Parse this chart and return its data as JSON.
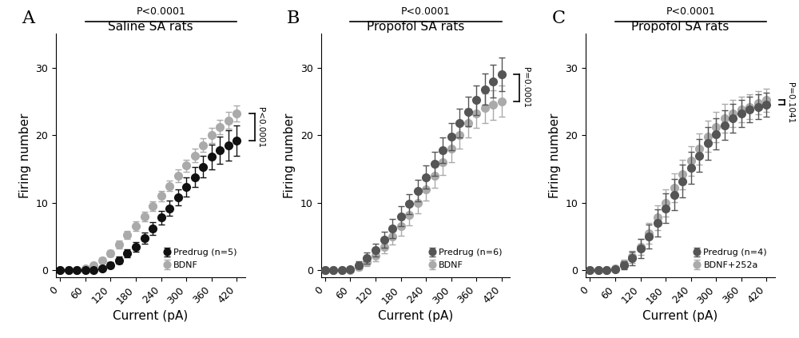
{
  "current": [
    0,
    20,
    40,
    60,
    80,
    100,
    120,
    140,
    160,
    180,
    200,
    220,
    240,
    260,
    280,
    300,
    320,
    340,
    360,
    380,
    400,
    420
  ],
  "panelA": {
    "title": "Saline SA rats",
    "label": "A",
    "predrug_label": "Predrug (n=5)",
    "drug_label": "BDNF",
    "predrug_color": "#111111",
    "drug_color": "#aaaaaa",
    "pval_top": "P<0.0001",
    "pval_right": "P<0.0001",
    "predrug_y": [
      0,
      0,
      0,
      0,
      0.1,
      0.3,
      0.8,
      1.5,
      2.5,
      3.5,
      4.8,
      6.2,
      7.8,
      9.2,
      10.8,
      12.3,
      13.8,
      15.3,
      16.8,
      17.8,
      18.5,
      19.2
    ],
    "predrug_err": [
      0,
      0,
      0,
      0.1,
      0.2,
      0.3,
      0.4,
      0.5,
      0.6,
      0.7,
      0.8,
      0.9,
      1.0,
      1.1,
      1.2,
      1.4,
      1.5,
      1.6,
      1.8,
      2.0,
      2.2,
      2.3
    ],
    "drug_y": [
      0,
      0,
      0.1,
      0.3,
      0.8,
      1.5,
      2.5,
      3.8,
      5.2,
      6.5,
      8.0,
      9.5,
      11.0,
      12.5,
      14.0,
      15.5,
      17.0,
      18.5,
      20.0,
      21.2,
      22.2,
      23.2
    ],
    "drug_err": [
      0,
      0,
      0.1,
      0.2,
      0.3,
      0.4,
      0.5,
      0.6,
      0.6,
      0.7,
      0.7,
      0.7,
      0.8,
      0.8,
      0.9,
      0.9,
      1.0,
      1.0,
      1.1,
      1.1,
      1.2,
      1.2
    ]
  },
  "panelB": {
    "title": "Propofol SA rats",
    "label": "B",
    "predrug_label": "Predrug (n=6)",
    "drug_label": "BDNF",
    "predrug_color": "#555555",
    "drug_color": "#aaaaaa",
    "pval_top": "P<0.0001",
    "pval_right": "P=0.0001",
    "predrug_y": [
      0,
      0,
      0,
      0.2,
      0.8,
      1.8,
      3.0,
      4.5,
      6.2,
      8.0,
      9.8,
      11.8,
      13.8,
      15.8,
      17.8,
      19.8,
      21.8,
      23.5,
      25.2,
      26.8,
      28.0,
      29.0
    ],
    "predrug_err": [
      0,
      0,
      0.1,
      0.3,
      0.5,
      0.8,
      1.0,
      1.2,
      1.4,
      1.5,
      1.5,
      1.6,
      1.7,
      1.8,
      1.9,
      2.0,
      2.1,
      2.2,
      2.2,
      2.3,
      2.4,
      2.5
    ],
    "drug_y": [
      0,
      0,
      0,
      0.1,
      0.5,
      1.2,
      2.2,
      3.5,
      5.0,
      6.5,
      8.2,
      10.0,
      12.0,
      14.0,
      16.0,
      18.0,
      20.0,
      21.8,
      23.2,
      24.0,
      24.5,
      25.0
    ],
    "drug_err": [
      0,
      0,
      0.1,
      0.2,
      0.4,
      0.6,
      0.8,
      1.0,
      1.2,
      1.4,
      1.5,
      1.6,
      1.7,
      1.8,
      1.9,
      2.0,
      2.0,
      2.1,
      2.1,
      2.2,
      2.2,
      2.3
    ]
  },
  "panelC": {
    "title": "Propofol SA rats",
    "label": "C",
    "predrug_label": "Predrug (n=4)",
    "drug_label": "BDNF+252a",
    "predrug_color": "#555555",
    "drug_color": "#aaaaaa",
    "pval_top": "P<0.0001",
    "pval_right": "P=0.1041",
    "predrug_y": [
      0,
      0,
      0,
      0.2,
      0.8,
      1.8,
      3.2,
      5.0,
      7.0,
      9.2,
      11.2,
      13.2,
      15.2,
      17.0,
      18.8,
      20.2,
      21.5,
      22.5,
      23.2,
      23.8,
      24.2,
      24.5
    ],
    "predrug_err": [
      0,
      0,
      0.1,
      0.3,
      0.6,
      1.0,
      1.4,
      1.8,
      2.0,
      2.2,
      2.3,
      2.4,
      2.4,
      2.4,
      2.4,
      2.3,
      2.2,
      2.1,
      2.0,
      1.9,
      1.8,
      1.8
    ],
    "drug_y": [
      0,
      0,
      0.1,
      0.3,
      1.0,
      2.0,
      3.5,
      5.5,
      7.8,
      10.0,
      12.2,
      14.2,
      16.2,
      18.0,
      19.8,
      21.2,
      22.5,
      23.2,
      23.8,
      24.2,
      24.8,
      25.2
    ],
    "drug_err": [
      0,
      0,
      0.1,
      0.3,
      0.6,
      0.9,
      1.2,
      1.5,
      1.8,
      2.0,
      2.1,
      2.2,
      2.2,
      2.3,
      2.3,
      2.2,
      2.1,
      2.0,
      1.9,
      1.8,
      1.7,
      1.7
    ]
  },
  "xlabel": "Current (pA)",
  "ylabel": "Firing number",
  "xlim": [
    -10,
    440
  ],
  "ylim": [
    -1,
    35
  ],
  "xticks": [
    0,
    60,
    120,
    180,
    240,
    300,
    360,
    420
  ],
  "yticks": [
    0,
    10,
    20,
    30
  ],
  "bg_color": "#ffffff",
  "marker_size": 7,
  "capsize": 3,
  "linewidth": 1.2
}
